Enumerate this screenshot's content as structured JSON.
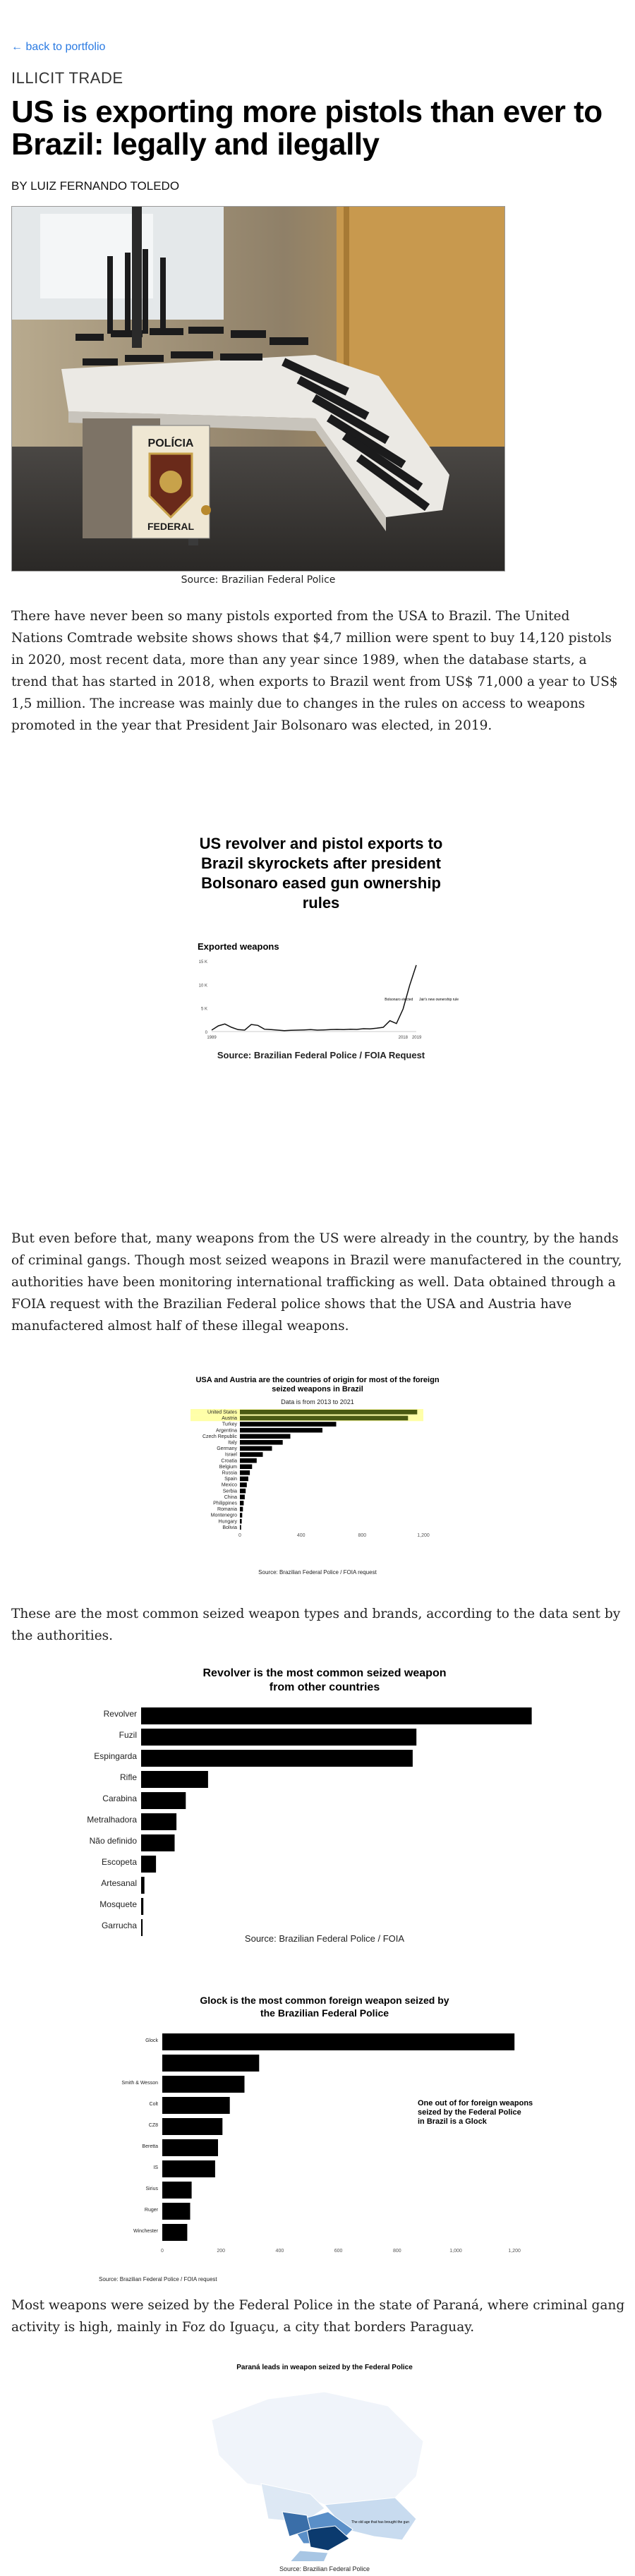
{
  "nav": {
    "back_link": "← back to portfolio"
  },
  "article": {
    "kicker": "ILLICIT TRADE",
    "headline": "US is exporting more pistols than ever to Brazil: legally and ilegally",
    "byline": "BY LUIZ FERNANDO TOLEDO",
    "photo": {
      "badge_top": "POLÍCIA",
      "badge_bottom": "FEDERAL",
      "caption": "Source: Brazilian Federal Police"
    },
    "paragraphs": [
      "There have never been so many pistols exported from the USA to Brazil. The United Nations Comtrade website shows shows that $4,7 million were spent to buy 14,120 pistols in 2020, most recent data, more than any year since 1989, when the database starts, a trend that has started in 2018, when exports to Brazil went from US$ 71,000 a year to US$ 1,5 million. The increase was mainly due to changes in the rules on access to weapons promoted in the year that President Jair Bolsonaro was elected, in 2019.",
      "But even before that, many weapons from the US were already in the country, by the hands of criminal gangs. Though most seized weapons in Brazil were manufactered in the country, authorities have been monitoring international trafficking as well. Data obtained through a FOIA request with the Brazilian Federal police shows that the USA and Austria have manufactered almost half of these illegal weapons.",
      "These are the most common seized weapon types and brands, according to the data sent by the authorities.",
      "Most weapons were seized by the Federal Police in the state of Paraná, where criminal gang activity is high, mainly in Foz do Iguaçu, a city that borders Paraguay."
    ]
  },
  "chart_data": [
    {
      "type": "line",
      "title": "US revolver and pistol exports to Brazil skyrockets after president Bolsonaro eased gun ownership rules",
      "ylabel": "Exported weapons",
      "x": [
        1989,
        1990,
        1991,
        1992,
        1993,
        1994,
        1995,
        1996,
        1997,
        1998,
        1999,
        2000,
        2001,
        2002,
        2003,
        2004,
        2005,
        2006,
        2007,
        2008,
        2009,
        2010,
        2011,
        2012,
        2013,
        2014,
        2015,
        2016,
        2017,
        2018,
        2019,
        2020
      ],
      "values": [
        300,
        1200,
        1600,
        900,
        400,
        300,
        1500,
        1300,
        500,
        400,
        300,
        200,
        250,
        300,
        350,
        400,
        300,
        350,
        400,
        450,
        400,
        500,
        450,
        600,
        550,
        700,
        900,
        2300,
        1700,
        4800,
        9800,
        14120
      ],
      "ylim": [
        0,
        15000
      ],
      "yticks": [
        "15 K",
        "10 K",
        "5 K",
        "0"
      ],
      "xticks": [
        "1989",
        "2018",
        "2019"
      ],
      "annotations": [
        "Bolsonaro elected",
        "Jair's new ownership rules change"
      ],
      "source": "Source: Brazilian Federal Police / FOIA Request"
    },
    {
      "type": "bar",
      "title": "USA and Austria are the countries of origin for most of the foreign seized weapons in Brazil",
      "subtitle": "Data is from 2013 to 2021",
      "categories": [
        "United States",
        "Austria",
        "Turkey",
        "Argentina",
        "Czech Republic",
        "Italy",
        "Germany",
        "Israel",
        "Croatia",
        "Belgium",
        "Russia",
        "Spain",
        "Mexico",
        "Serbia",
        "China",
        "Philippines",
        "Romania",
        "Montenegro",
        "Hungary",
        "Bolivia"
      ],
      "values": [
        1160,
        1100,
        630,
        540,
        330,
        280,
        210,
        150,
        110,
        80,
        65,
        55,
        45,
        38,
        32,
        25,
        20,
        15,
        12,
        8
      ],
      "highlight": [
        "United States",
        "Austria"
      ],
      "xticks": [
        "0",
        "400",
        "800",
        "1,200"
      ],
      "xlim": [
        0,
        1200
      ],
      "source": "Source: Brazilian Federal Police / FOIA request"
    },
    {
      "type": "bar",
      "title": "Revolver is the most common seized weapon from other countries",
      "categories": [
        "Revolver",
        "Fuzil",
        "Espingarda",
        "Rifle",
        "Carabina",
        "Metralhadora",
        "Não definido",
        "Escopeta",
        "Artesanal",
        "Mosquete",
        "Garrucha"
      ],
      "values": [
        2100,
        1480,
        1460,
        360,
        240,
        190,
        180,
        80,
        18,
        12,
        8
      ],
      "xlim": [
        0,
        2200
      ],
      "source": "Source: Brazilian Federal Police / FOIA"
    },
    {
      "type": "bar",
      "title": "Glock is the most common foreign weapon seized by the Brazilian Federal Police",
      "categories": [
        "Glock",
        "",
        "Smith & Wesson",
        "Colt",
        "CZ8",
        "Beretta",
        "IS",
        "Sirius",
        "Ruger",
        "Winchester"
      ],
      "values": [
        1200,
        330,
        280,
        230,
        205,
        190,
        180,
        100,
        95,
        85
      ],
      "xticks": [
        "0",
        "200",
        "400",
        "600",
        "800",
        "1,000",
        "1,200"
      ],
      "xlim": [
        0,
        1250
      ],
      "annotation": "One out of for foreign weapons seized by the Federal Police in Brazil is a Glock",
      "source": "Source: Brazilian Federal Police / FOIA request"
    },
    {
      "type": "heatmap",
      "title": "Paraná leads in weapon seized by the Federal Police",
      "annotation": "The old age that has brought the gun",
      "source": "Source: Brazilian Federal Police"
    }
  ],
  "colors": {
    "link": "#2a7ae2",
    "bar": "#000000",
    "highlight": "#ffffa8",
    "highlight_bar": "#4a5a14",
    "map_dark": "#0b3a6e"
  }
}
